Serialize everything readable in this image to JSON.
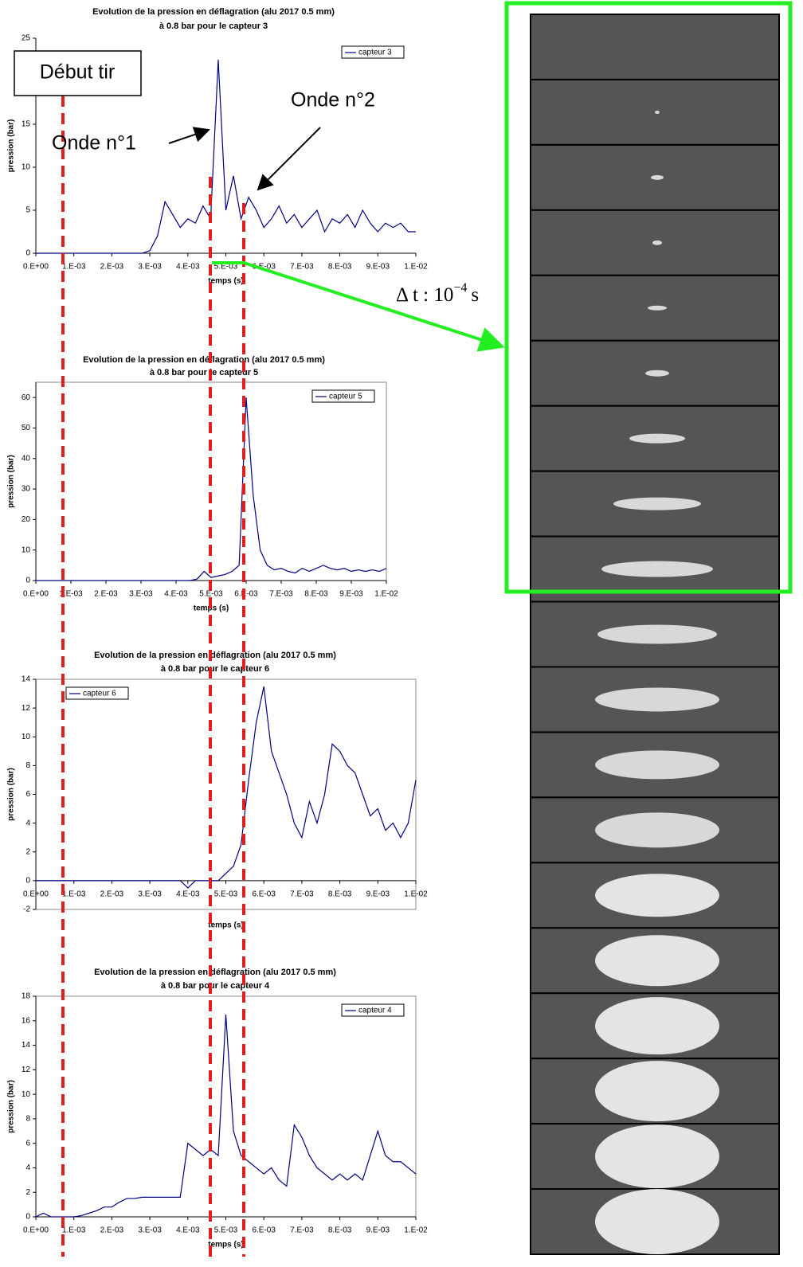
{
  "chart_data": [
    {
      "type": "line",
      "title": "Evolution de la pression en déflagration (alu 2017 0.5 mm)",
      "subtitle": "à 0.8 bar pour le capteur 3",
      "x_label": "temps (s)",
      "y_label": "pression (bar)",
      "legend": "upper right",
      "x": [
        0,
        0.0002,
        0.0004,
        0.0006,
        0.0008,
        0.001,
        0.0012,
        0.0014,
        0.0016,
        0.0018,
        0.002,
        0.0022,
        0.0024,
        0.0026,
        0.0028,
        0.003,
        0.0032,
        0.0034,
        0.0036,
        0.0038,
        0.004,
        0.0042,
        0.0044,
        0.0046,
        0.0048,
        0.005,
        0.0052,
        0.0054,
        0.0056,
        0.0058,
        0.006,
        0.0062,
        0.0064,
        0.0066,
        0.0068,
        0.007,
        0.0072,
        0.0074,
        0.0076,
        0.0078,
        0.008,
        0.0082,
        0.0084,
        0.0086,
        0.0088,
        0.009,
        0.0092,
        0.0094,
        0.0096,
        0.0098,
        0.01
      ],
      "series": [
        {
          "name": "capteur 3",
          "color": "#000080",
          "values": [
            0,
            0,
            0,
            0,
            0,
            0,
            0,
            0,
            0,
            0,
            0,
            0,
            0,
            0,
            0,
            0.3,
            2,
            6,
            4.5,
            3,
            4,
            3.5,
            5.5,
            4,
            22.5,
            5,
            9,
            4,
            6.5,
            5,
            3,
            4,
            5.5,
            3.5,
            4.5,
            3,
            4,
            5,
            2.5,
            4,
            3.5,
            4.5,
            3,
            5,
            3.5,
            2.5,
            3.5,
            3,
            3.5,
            2.5,
            2.5
          ]
        }
      ],
      "xlim": [
        0,
        0.01
      ],
      "ylim": [
        0,
        25
      ],
      "yticks": [
        0,
        5,
        10,
        15,
        20,
        25
      ],
      "xticks": [
        {
          "value": 0,
          "label": "0.E+00"
        },
        {
          "value": 0.001,
          "label": "1.E-03"
        },
        {
          "value": 0.002,
          "label": "2.E-03"
        },
        {
          "value": 0.003,
          "label": "3.E-03"
        },
        {
          "value": 0.004,
          "label": "4.E-03"
        },
        {
          "value": 0.005,
          "label": "5.E-03"
        },
        {
          "value": 0.006,
          "label": "6.E-03"
        },
        {
          "value": 0.007,
          "label": "7.E-03"
        },
        {
          "value": 0.008,
          "label": "8.E-03"
        },
        {
          "value": 0.009,
          "label": "9.E-03"
        },
        {
          "value": 0.01,
          "label": "1.E-02"
        }
      ]
    },
    {
      "type": "line",
      "title": "Evolution de la pression en déflagration (alu 2017 0.5 mm)",
      "subtitle": "à 0.8 bar pour le capteur 5",
      "x_label": "temps (s)",
      "y_label": "pression (bar)",
      "legend": "upper right",
      "x": [
        0,
        0.0002,
        0.0004,
        0.0006,
        0.0008,
        0.001,
        0.0012,
        0.0014,
        0.0016,
        0.0018,
        0.002,
        0.0022,
        0.0024,
        0.0026,
        0.0028,
        0.003,
        0.0032,
        0.0034,
        0.0036,
        0.0038,
        0.004,
        0.0042,
        0.0044,
        0.0046,
        0.0048,
        0.005,
        0.0052,
        0.0054,
        0.0056,
        0.0058,
        0.006,
        0.0062,
        0.0064,
        0.0066,
        0.0068,
        0.007,
        0.0072,
        0.0074,
        0.0076,
        0.0078,
        0.008,
        0.0082,
        0.0084,
        0.0086,
        0.0088,
        0.009,
        0.0092,
        0.0094,
        0.0096,
        0.0098,
        0.01
      ],
      "series": [
        {
          "name": "capteur 5",
          "color": "#000080",
          "values": [
            0,
            0,
            0,
            0,
            0,
            0,
            0,
            0,
            0,
            0,
            0,
            0,
            0,
            0,
            0,
            0,
            0,
            0,
            0,
            0,
            0,
            0,
            0,
            0.5,
            3,
            1,
            1.5,
            2,
            3,
            5,
            60,
            28,
            10,
            5,
            3.5,
            4,
            3,
            2.5,
            4,
            3,
            4,
            5,
            4,
            3.5,
            4,
            3,
            3.5,
            3,
            3.5,
            3,
            4
          ]
        }
      ],
      "xlim": [
        0,
        0.01
      ],
      "ylim": [
        0,
        65
      ],
      "yticks": [
        0,
        10,
        20,
        30,
        40,
        50,
        60
      ],
      "xticks": [
        {
          "value": 0,
          "label": "0.E+00"
        },
        {
          "value": 0.001,
          "label": "1.E-03"
        },
        {
          "value": 0.002,
          "label": "2.E-03"
        },
        {
          "value": 0.003,
          "label": "3.E-03"
        },
        {
          "value": 0.004,
          "label": "4.E-03"
        },
        {
          "value": 0.005,
          "label": "5.E-03"
        },
        {
          "value": 0.006,
          "label": "6.E-03"
        },
        {
          "value": 0.007,
          "label": "7.E-03"
        },
        {
          "value": 0.008,
          "label": "8.E-03"
        },
        {
          "value": 0.009,
          "label": "9.E-03"
        },
        {
          "value": 0.01,
          "label": "1.E-02"
        }
      ]
    },
    {
      "type": "line",
      "title": "Evolution de la pression en déflagration (alu 2017 0.5 mm)",
      "subtitle": "à 0.8 bar pour le capteur 6",
      "x_label": "temps (s)",
      "y_label": "pression (bar)",
      "legend": "upper left",
      "x": [
        0,
        0.0002,
        0.0004,
        0.0006,
        0.0008,
        0.001,
        0.0012,
        0.0014,
        0.0016,
        0.0018,
        0.002,
        0.0022,
        0.0024,
        0.0026,
        0.0028,
        0.003,
        0.0032,
        0.0034,
        0.0036,
        0.0038,
        0.004,
        0.0042,
        0.0044,
        0.0046,
        0.0048,
        0.005,
        0.0052,
        0.0054,
        0.0056,
        0.0058,
        0.006,
        0.0062,
        0.0064,
        0.0066,
        0.0068,
        0.007,
        0.0072,
        0.0074,
        0.0076,
        0.0078,
        0.008,
        0.0082,
        0.0084,
        0.0086,
        0.0088,
        0.009,
        0.0092,
        0.0094,
        0.0096,
        0.0098,
        0.01
      ],
      "series": [
        {
          "name": "capteur 6",
          "color": "#000080",
          "values": [
            0,
            0,
            0,
            0,
            0,
            0,
            0,
            0,
            0,
            0,
            0,
            0,
            0,
            0,
            0,
            0,
            0,
            0,
            0,
            0,
            -0.5,
            0,
            0,
            0,
            0,
            0.5,
            1,
            2.5,
            7,
            11,
            13.5,
            9,
            7.5,
            6,
            4,
            3,
            5.5,
            4,
            6,
            9.5,
            9,
            8,
            7.5,
            6,
            4.5,
            5,
            3.5,
            4,
            3,
            4,
            7
          ]
        }
      ],
      "xlim": [
        0,
        0.01
      ],
      "ylim": [
        -2,
        14
      ],
      "yticks": [
        -2,
        0,
        2,
        4,
        6,
        8,
        10,
        12,
        14
      ],
      "xticks": [
        {
          "value": 0,
          "label": "0.E+00"
        },
        {
          "value": 0.001,
          "label": "1.E-03"
        },
        {
          "value": 0.002,
          "label": "2.E-03"
        },
        {
          "value": 0.003,
          "label": "3.E-03"
        },
        {
          "value": 0.004,
          "label": "4.E-03"
        },
        {
          "value": 0.005,
          "label": "5.E-03"
        },
        {
          "value": 0.006,
          "label": "6.E-03"
        },
        {
          "value": 0.007,
          "label": "7.E-03"
        },
        {
          "value": 0.008,
          "label": "8.E-03"
        },
        {
          "value": 0.009,
          "label": "9.E-03"
        },
        {
          "value": 0.01,
          "label": "1.E-02"
        }
      ]
    },
    {
      "type": "line",
      "title": "Evolution de la pression en déflagration (alu 2017 0.5 mm)",
      "subtitle": "à 0.8 bar pour le capteur 4",
      "x_label": "temps (s)",
      "y_label": "pression (bar)",
      "legend": "upper right",
      "x": [
        0,
        0.0002,
        0.0004,
        0.0006,
        0.0008,
        0.001,
        0.0012,
        0.0014,
        0.0016,
        0.0018,
        0.002,
        0.0022,
        0.0024,
        0.0026,
        0.0028,
        0.003,
        0.0032,
        0.0034,
        0.0036,
        0.0038,
        0.004,
        0.0042,
        0.0044,
        0.0046,
        0.0048,
        0.005,
        0.0052,
        0.0054,
        0.0056,
        0.0058,
        0.006,
        0.0062,
        0.0064,
        0.0066,
        0.0068,
        0.007,
        0.0072,
        0.0074,
        0.0076,
        0.0078,
        0.008,
        0.0082,
        0.0084,
        0.0086,
        0.0088,
        0.009,
        0.0092,
        0.0094,
        0.0096,
        0.0098,
        0.01
      ],
      "series": [
        {
          "name": "capteur 4",
          "color": "#000080",
          "values": [
            0,
            0.3,
            0,
            0,
            0,
            0,
            0.1,
            0.3,
            0.5,
            0.8,
            0.8,
            1.2,
            1.5,
            1.5,
            1.6,
            1.6,
            1.6,
            1.6,
            1.6,
            1.6,
            6,
            5.5,
            5,
            5.5,
            5,
            16.5,
            7,
            5,
            4.5,
            4,
            3.5,
            4,
            3,
            2.5,
            7.5,
            6.5,
            5,
            4,
            3.5,
            3,
            3.5,
            3,
            3.5,
            3,
            5,
            7,
            5,
            4.5,
            4.5,
            4,
            3.5
          ]
        }
      ],
      "xlim": [
        0,
        0.01
      ],
      "ylim": [
        0,
        18
      ],
      "yticks": [
        0,
        2,
        4,
        6,
        8,
        10,
        12,
        14,
        16,
        18
      ],
      "xticks": [
        {
          "value": 0,
          "label": "0.E+00"
        },
        {
          "value": 0.001,
          "label": "1.E-03"
        },
        {
          "value": 0.002,
          "label": "2.E-03"
        },
        {
          "value": 0.003,
          "label": "3.E-03"
        },
        {
          "value": 0.004,
          "label": "4.E-03"
        },
        {
          "value": 0.005,
          "label": "5.E-03"
        },
        {
          "value": 0.006,
          "label": "6.E-03"
        },
        {
          "value": 0.007,
          "label": "7.E-03"
        },
        {
          "value": 0.008,
          "label": "8.E-03"
        },
        {
          "value": 0.009,
          "label": "9.E-03"
        },
        {
          "value": 0.01,
          "label": "1.E-02"
        }
      ]
    }
  ],
  "annotations": {
    "start": "Début tir",
    "wave_1": "Onde n°1",
    "wave_2": "Onde n°2",
    "delta_t": {
      "base": "Δ t : 10",
      "exponent": "−4",
      "unit": "s"
    }
  }
}
